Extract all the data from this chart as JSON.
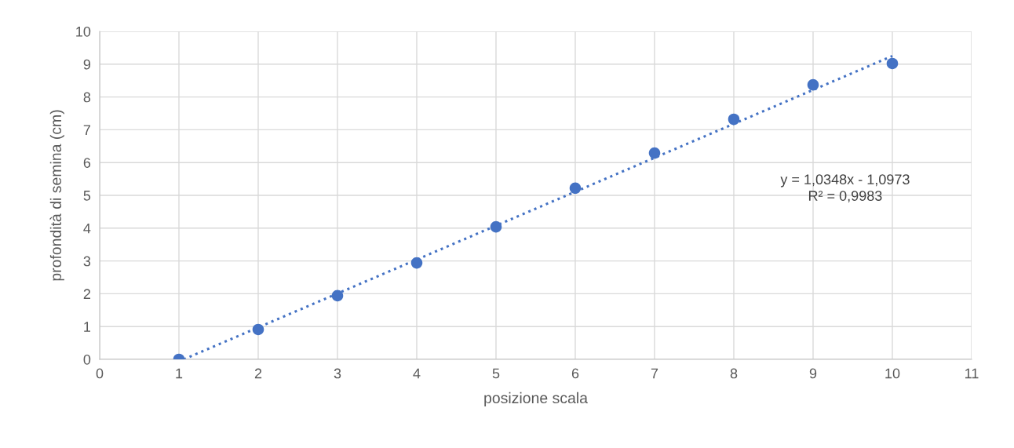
{
  "chart_data": {
    "type": "scatter",
    "xlabel": "posizione scala",
    "ylabel": "profondità di semina (cm)",
    "xlim": [
      0,
      11
    ],
    "xticks": [
      0,
      1,
      2,
      3,
      4,
      5,
      6,
      7,
      8,
      9,
      10,
      11
    ],
    "ylim": [
      0,
      10
    ],
    "yticks": [
      0,
      1,
      2,
      3,
      4,
      5,
      6,
      7,
      8,
      9,
      10
    ],
    "grid": true,
    "legend": false,
    "series": [
      {
        "type": "scatter",
        "color": "#4472c4",
        "marker": "circle",
        "x": [
          1,
          2,
          3,
          4,
          5,
          6,
          7,
          8,
          9,
          10
        ],
        "values": [
          0,
          0.91,
          1.94,
          2.94,
          4.04,
          5.22,
          6.29,
          7.32,
          8.37,
          9.02
        ]
      },
      {
        "type": "line",
        "color": "#4472c4",
        "line_style": "dotted",
        "marker": "none",
        "x": [
          1.06,
          10
        ],
        "values": [
          0,
          9.25
        ]
      }
    ],
    "annotations": [
      "y = 1,0348x - 1,0973",
      "R² = 0,9983"
    ]
  }
}
